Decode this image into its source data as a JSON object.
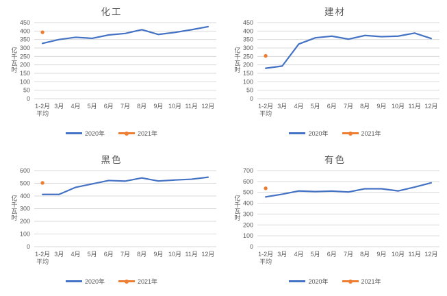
{
  "colors": {
    "series_2020": "#4472C4",
    "series_2021": "#ED7D31",
    "gridline": "#D9D9D9",
    "text": "#595959"
  },
  "chart_data": [
    {
      "type": "line",
      "title": "化工",
      "ylabel": "亿千瓦时",
      "categories": [
        "1-2月\n平均",
        "3月",
        "4月",
        "5月",
        "6月",
        "7月",
        "8月",
        "9月",
        "10月",
        "11月",
        "12月"
      ],
      "ylim": [
        0,
        450
      ],
      "ytick_step": 50,
      "grid": true,
      "legend_position": "bottom",
      "series": [
        {
          "name": "2020年",
          "values": [
            327,
            350,
            363,
            357,
            377,
            386,
            408,
            380,
            392,
            408,
            426
          ]
        },
        {
          "name": "2021年",
          "values": [
            393
          ]
        }
      ]
    },
    {
      "type": "line",
      "title": "建材",
      "ylabel": "亿千瓦时",
      "categories": [
        "1-2月\n平均",
        "3月",
        "4月",
        "5月",
        "6月",
        "7月",
        "8月",
        "9月",
        "10月",
        "11月",
        "12月"
      ],
      "ylim": [
        0,
        450
      ],
      "ytick_step": 50,
      "grid": true,
      "legend_position": "bottom",
      "series": [
        {
          "name": "2020年",
          "values": [
            180,
            193,
            323,
            360,
            370,
            352,
            374,
            367,
            370,
            388,
            356
          ]
        },
        {
          "name": "2021年",
          "values": [
            253
          ]
        }
      ]
    },
    {
      "type": "line",
      "title": "黑色",
      "ylabel": "亿千瓦时",
      "categories": [
        "1-2月\n平均",
        "3月",
        "4月",
        "5月",
        "6月",
        "7月",
        "8月",
        "9月",
        "10月",
        "11月",
        "12月"
      ],
      "ylim": [
        0,
        600
      ],
      "ytick_step": 100,
      "grid": true,
      "legend_position": "bottom",
      "series": [
        {
          "name": "2020年",
          "values": [
            412,
            412,
            468,
            495,
            522,
            517,
            542,
            518,
            526,
            532,
            548
          ]
        },
        {
          "name": "2021年",
          "values": [
            503
          ]
        }
      ]
    },
    {
      "type": "line",
      "title": "有色",
      "ylabel": "亿千瓦时",
      "categories": [
        "1-2月\n平均",
        "3月",
        "4月",
        "5月",
        "6月",
        "7月",
        "8月",
        "9月",
        "10月",
        "11月",
        "12月"
      ],
      "ylim": [
        0,
        700
      ],
      "ytick_step": 100,
      "grid": true,
      "legend_position": "bottom",
      "series": [
        {
          "name": "2020年",
          "values": [
            458,
            483,
            513,
            507,
            512,
            503,
            533,
            533,
            513,
            548,
            588
          ]
        },
        {
          "name": "2021年",
          "values": [
            537
          ]
        }
      ]
    }
  ]
}
